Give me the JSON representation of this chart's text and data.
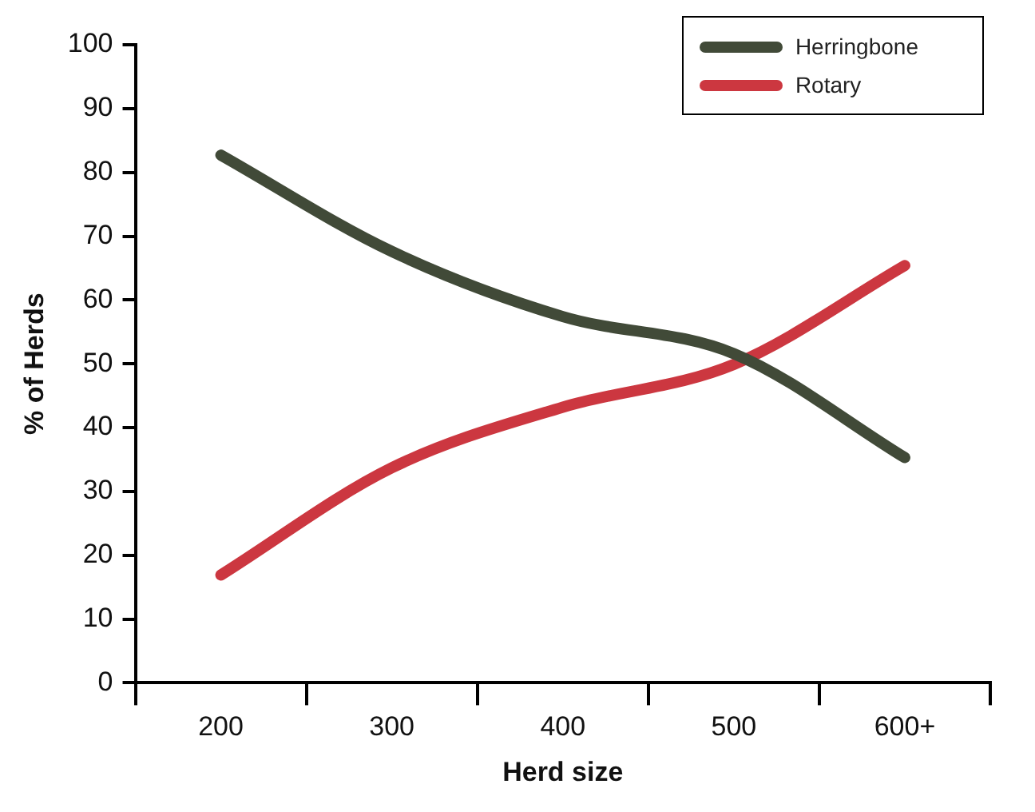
{
  "chart_data": {
    "type": "line",
    "xlabel": "Herd size",
    "ylabel": "% of Herds",
    "categories": [
      "200",
      "300",
      "400",
      "500",
      "600+"
    ],
    "series": [
      {
        "name": "Herringbone",
        "color": "#414a38",
        "values": [
          82.7,
          67.6,
          57.4,
          51.6,
          35.3
        ]
      },
      {
        "name": "Rotary",
        "color": "#cc3740",
        "values": [
          16.9,
          33.7,
          43.2,
          49.9,
          65.4
        ]
      }
    ],
    "ylim": [
      0,
      100
    ],
    "yticks": [
      0,
      10,
      20,
      30,
      40,
      50,
      60,
      70,
      80,
      90,
      100
    ],
    "grid": false,
    "legend": "top right",
    "marker": "none",
    "line_style": "solid"
  }
}
